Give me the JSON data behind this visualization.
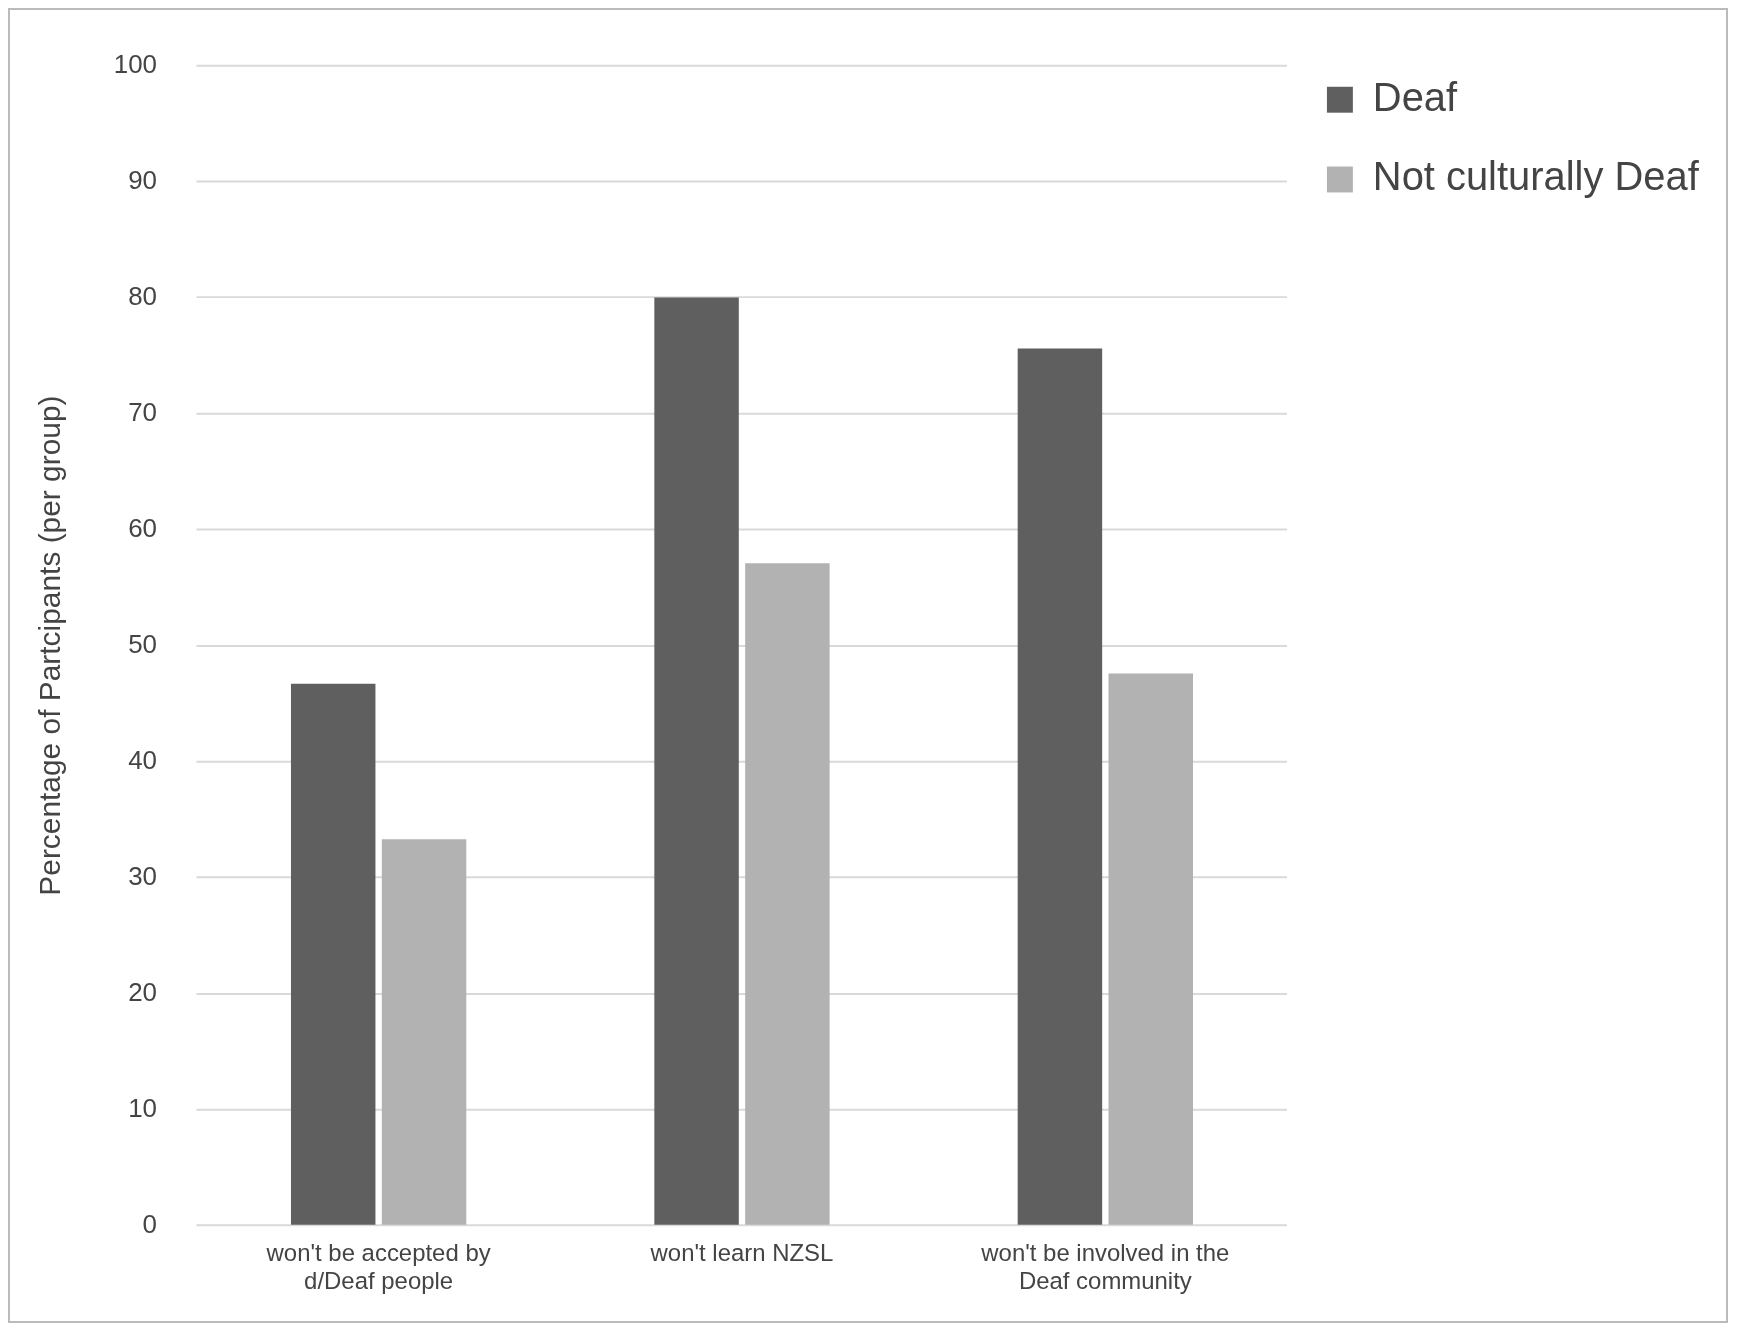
{
  "chart_data": {
    "type": "bar",
    "ylabel": "Percentage of Partcipants (per group)",
    "categories": [
      "won't be accepted by d/Deaf people",
      "won't learn NZSL",
      "won't be involved in the Deaf community"
    ],
    "series": [
      {
        "name": "Deaf",
        "color": "#5f5f5f",
        "values": [
          46.7,
          80.0,
          75.6
        ]
      },
      {
        "name": "Not culturally Deaf",
        "color": "#b2b2b2",
        "values": [
          33.3,
          57.1,
          47.6
        ]
      }
    ],
    "ylim": [
      0,
      100
    ],
    "yticks": [
      0,
      10,
      20,
      30,
      40,
      50,
      60,
      70,
      80,
      90,
      100
    ],
    "grid": "y",
    "legend": "right"
  }
}
